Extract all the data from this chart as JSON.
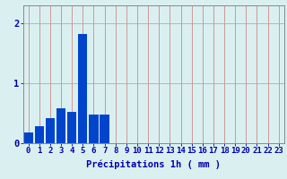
{
  "categories": [
    0,
    1,
    2,
    3,
    4,
    5,
    6,
    7,
    8,
    9,
    10,
    11,
    12,
    13,
    14,
    15,
    16,
    17,
    18,
    19,
    20,
    21,
    22,
    23
  ],
  "values": [
    0.18,
    0.28,
    0.42,
    0.58,
    0.52,
    1.82,
    0.48,
    0.48,
    0,
    0,
    0,
    0,
    0,
    0,
    0,
    0,
    0,
    0,
    0,
    0,
    0,
    0,
    0,
    0
  ],
  "bar_color": "#0044cc",
  "background_color": "#daf0f0",
  "grid_color_h": "#b8a8a8",
  "grid_color_v": "#cc8888",
  "axis_color": "#0000aa",
  "xlabel": "Précipitations 1h ( mm )",
  "ylim": [
    0,
    2.3
  ],
  "yticks": [
    0,
    1,
    2
  ],
  "xlim": [
    -0.5,
    23.5
  ],
  "xlabel_fontsize": 7.5,
  "tick_fontsize": 6.5,
  "bar_width": 0.85
}
